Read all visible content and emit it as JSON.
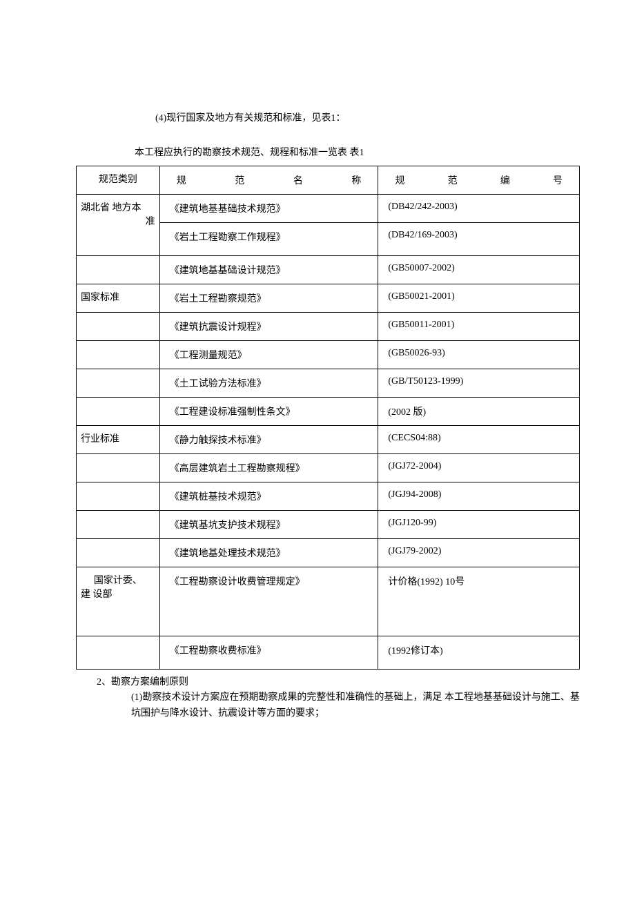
{
  "intro": "(4)现行国家及地方有关规范和标准，见表1：",
  "caption": "本工程应执行的勘察技术规范、规程和标准一览表 表1",
  "headers": {
    "category": "规范类别",
    "name_c1": "规",
    "name_c2": "范",
    "name_c3": "名",
    "name_c4": "称",
    "code_c1": "规",
    "code_c2": "范",
    "code_c3": "编",
    "code_c4": "号"
  },
  "categories": {
    "hubei_l1": "湖北省 地方本",
    "hubei_l2": "准",
    "national": "国家标准",
    "industry": "行业标准",
    "planning_l1": "国家计委、",
    "planning_l2": "建 设部"
  },
  "rows": {
    "r0": {
      "name": "《建筑地基基础技术规范》",
      "code": "(DB42/242-2003)"
    },
    "r1": {
      "name": "《岩土工程勘察工作规程》",
      "code": "(DB42/169-2003)"
    },
    "r2": {
      "name": "《建筑地基基础设计规范》",
      "code": "(GB50007-2002)"
    },
    "r3": {
      "name": "《岩土工程勘察规范》",
      "code": "(GB50021-2001)"
    },
    "r4": {
      "name": "《建筑抗震设计规程》",
      "code": "(GB50011-2001)"
    },
    "r5": {
      "name": "《工程测量规范》",
      "code": "(GB50026-93)"
    },
    "r6": {
      "name": "《土工试验方法标准》",
      "code": "(GB/T50123-1999)"
    },
    "r7": {
      "name": "《工程建设标准强制性条文》",
      "code": "(2002 版)"
    },
    "r8": {
      "name": "《静力触探技术标准》",
      "code": "(CECS04:88)"
    },
    "r9": {
      "name": "《高层建筑岩土工程勘察规程》",
      "code": "(JGJ72-2004)"
    },
    "r10": {
      "name": "《建筑桩基技术规范》",
      "code": "(JGJ94-2008)"
    },
    "r11": {
      "name": "《建筑基坑支护技术规程》",
      "code": "(JGJ120-99)"
    },
    "r12": {
      "name": "《建筑地基处理技术规范》",
      "code": "(JGJ79-2002)"
    },
    "r13": {
      "name": "《工程勘察设计收费管理规定》",
      "code": "计价格(1992) 10号"
    },
    "r14": {
      "name": "《工程勘察收费标准》",
      "code": "(1992修订本)"
    }
  },
  "footer": {
    "p1": "2、勘察方案编制原则",
    "p2": "(1)勘察技术设计方案应在预期勘察成果的完整性和准确性的基础上，满足 本工程地基基础设计与施工、基坑围护与降水设计、抗震设计等方面的要求；"
  }
}
